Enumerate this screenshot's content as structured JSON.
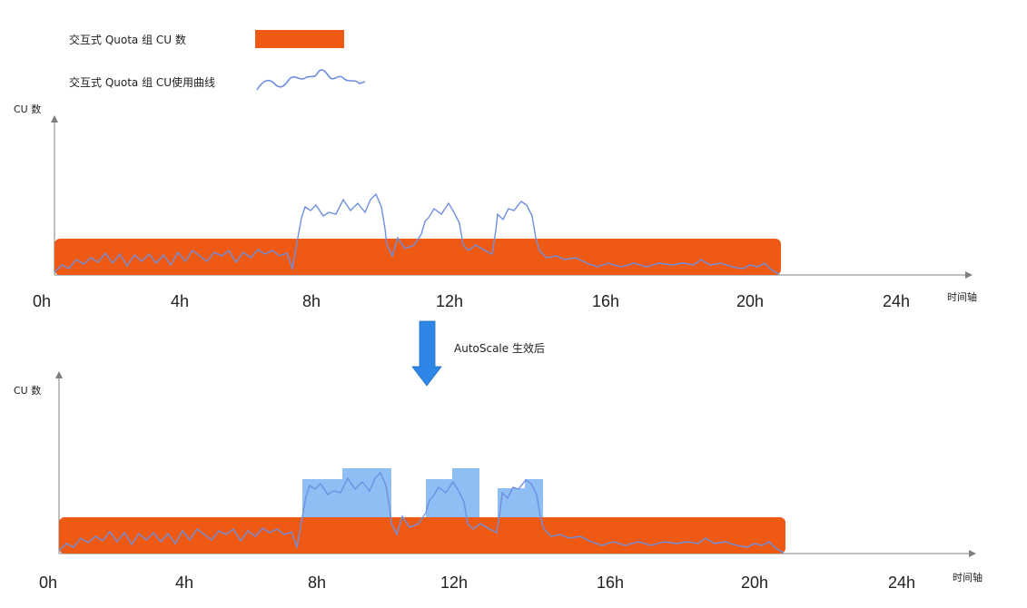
{
  "legend": {
    "quota_label": "交互式 Quota 组 CU 数",
    "usage_label": "交互式 Quota 组 CU使用曲线"
  },
  "colors": {
    "quota": "#ee5a14",
    "usage_line": "#6e8fe0",
    "autoscale_fill": "#8fbef5",
    "arrow": "#2e86e6",
    "axis": "#7f7f7f"
  },
  "transition_label": "AutoScale 生效后",
  "top_chart": {
    "y_axis_label": "CU 数",
    "x_axis_label": "时间轴",
    "x_ticks": [
      "0h",
      "4h",
      "8h",
      "12h",
      "16h",
      "20h",
      "24h"
    ]
  },
  "bottom_chart": {
    "y_axis_label": "CU 数",
    "x_axis_label": "时间轴",
    "x_ticks": [
      "0h",
      "4h",
      "8h",
      "12h",
      "16h",
      "20h",
      "24h"
    ]
  },
  "chart_data": [
    {
      "type": "area",
      "x_range": [
        0,
        24
      ],
      "quota_span_hours": [
        0,
        21
      ],
      "usage_exceeds_quota_windows": [
        [
          7.5,
          10.0
        ],
        [
          11.0,
          12.5
        ],
        [
          13.0,
          14.2
        ]
      ]
    },
    {
      "type": "area",
      "x_range": [
        0,
        24
      ],
      "quota_span_hours": [
        0,
        21
      ],
      "autoscale_windows": [
        [
          7.5,
          8.7
        ],
        [
          8.7,
          10.1
        ],
        [
          11.0,
          11.8
        ],
        [
          11.8,
          12.7
        ],
        [
          13.0,
          13.6
        ],
        [
          13.6,
          14.2
        ]
      ]
    }
  ]
}
